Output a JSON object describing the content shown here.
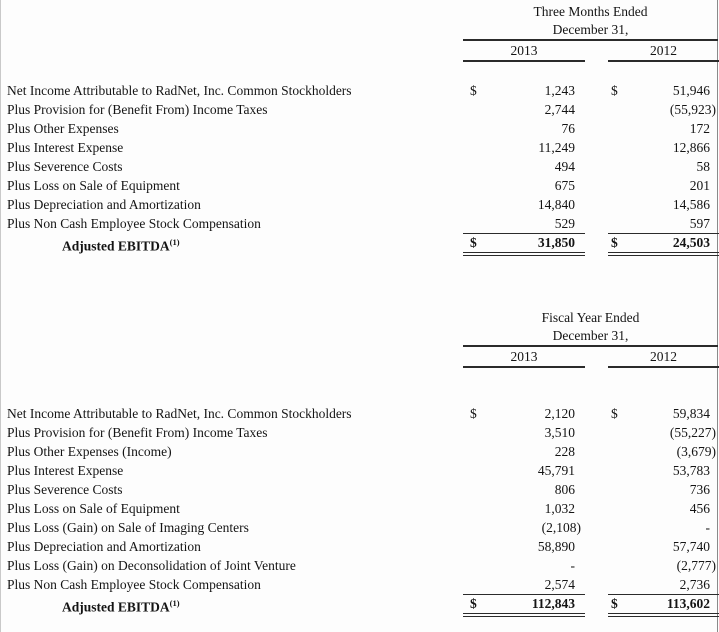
{
  "page": {
    "background": "#fdfdfd",
    "text_color": "#141414",
    "rule_color": "#2b2b2b"
  },
  "currency_symbol": "$",
  "tables": [
    {
      "period_title": "Three Months Ended",
      "period_subtitle": "December 31,",
      "columns": [
        "2013",
        "2012"
      ],
      "rows": [
        {
          "label": "Net Income Attributable to RadNet, Inc. Common Stockholders",
          "dollar": true,
          "values": [
            "1,243",
            "51,946"
          ]
        },
        {
          "label": "Plus Provision for (Benefit From) Income Taxes",
          "values": [
            "2,744",
            "(55,923)"
          ]
        },
        {
          "label": "Plus Other Expenses",
          "values": [
            "76",
            "172"
          ]
        },
        {
          "label": "Plus Interest Expense",
          "values": [
            "11,249",
            "12,866"
          ]
        },
        {
          "label": "Plus Severence Costs",
          "values": [
            "494",
            "58"
          ]
        },
        {
          "label": "Plus Loss on Sale of Equipment",
          "values": [
            "675",
            "201"
          ]
        },
        {
          "label": "Plus Depreciation and Amortization",
          "values": [
            "14,840",
            "14,586"
          ]
        },
        {
          "label": "Plus Non Cash Employee Stock Compensation",
          "values": [
            "529",
            "597"
          ]
        }
      ],
      "total": {
        "label": "Adjusted EBITDA",
        "superscript": "(1)",
        "dollar": true,
        "values": [
          "31,850",
          "24,503"
        ]
      }
    },
    {
      "period_title": "Fiscal Year Ended",
      "period_subtitle": "December 31,",
      "columns": [
        "2013",
        "2012"
      ],
      "rows": [
        {
          "label": "Net Income Attributable to RadNet, Inc. Common Stockholders",
          "dollar": true,
          "values": [
            "2,120",
            "59,834"
          ]
        },
        {
          "label": "Plus Provision for (Benefit From) Income Taxes",
          "values": [
            "3,510",
            "(55,227)"
          ]
        },
        {
          "label": "Plus Other Expenses (Income)",
          "values": [
            "228",
            "(3,679)"
          ]
        },
        {
          "label": "Plus Interest Expense",
          "values": [
            "45,791",
            "53,783"
          ]
        },
        {
          "label": "Plus Severence Costs",
          "values": [
            "806",
            "736"
          ]
        },
        {
          "label": "Plus Loss on Sale of Equipment",
          "values": [
            "1,032",
            "456"
          ]
        },
        {
          "label": "Plus Loss (Gain) on Sale of Imaging Centers",
          "values": [
            "(2,108)",
            "-"
          ]
        },
        {
          "label": "Plus Depreciation and Amortization",
          "values": [
            "58,890",
            "57,740"
          ]
        },
        {
          "label": "Plus Loss (Gain) on Deconsolidation of Joint Venture",
          "values": [
            "-",
            "(2,777)"
          ]
        },
        {
          "label": "Plus Non Cash Employee Stock Compensation",
          "values": [
            "2,574",
            "2,736"
          ]
        }
      ],
      "total": {
        "label": "Adjusted EBITDA",
        "superscript": "(1)",
        "dollar": true,
        "values": [
          "112,843",
          "113,602"
        ]
      }
    }
  ]
}
